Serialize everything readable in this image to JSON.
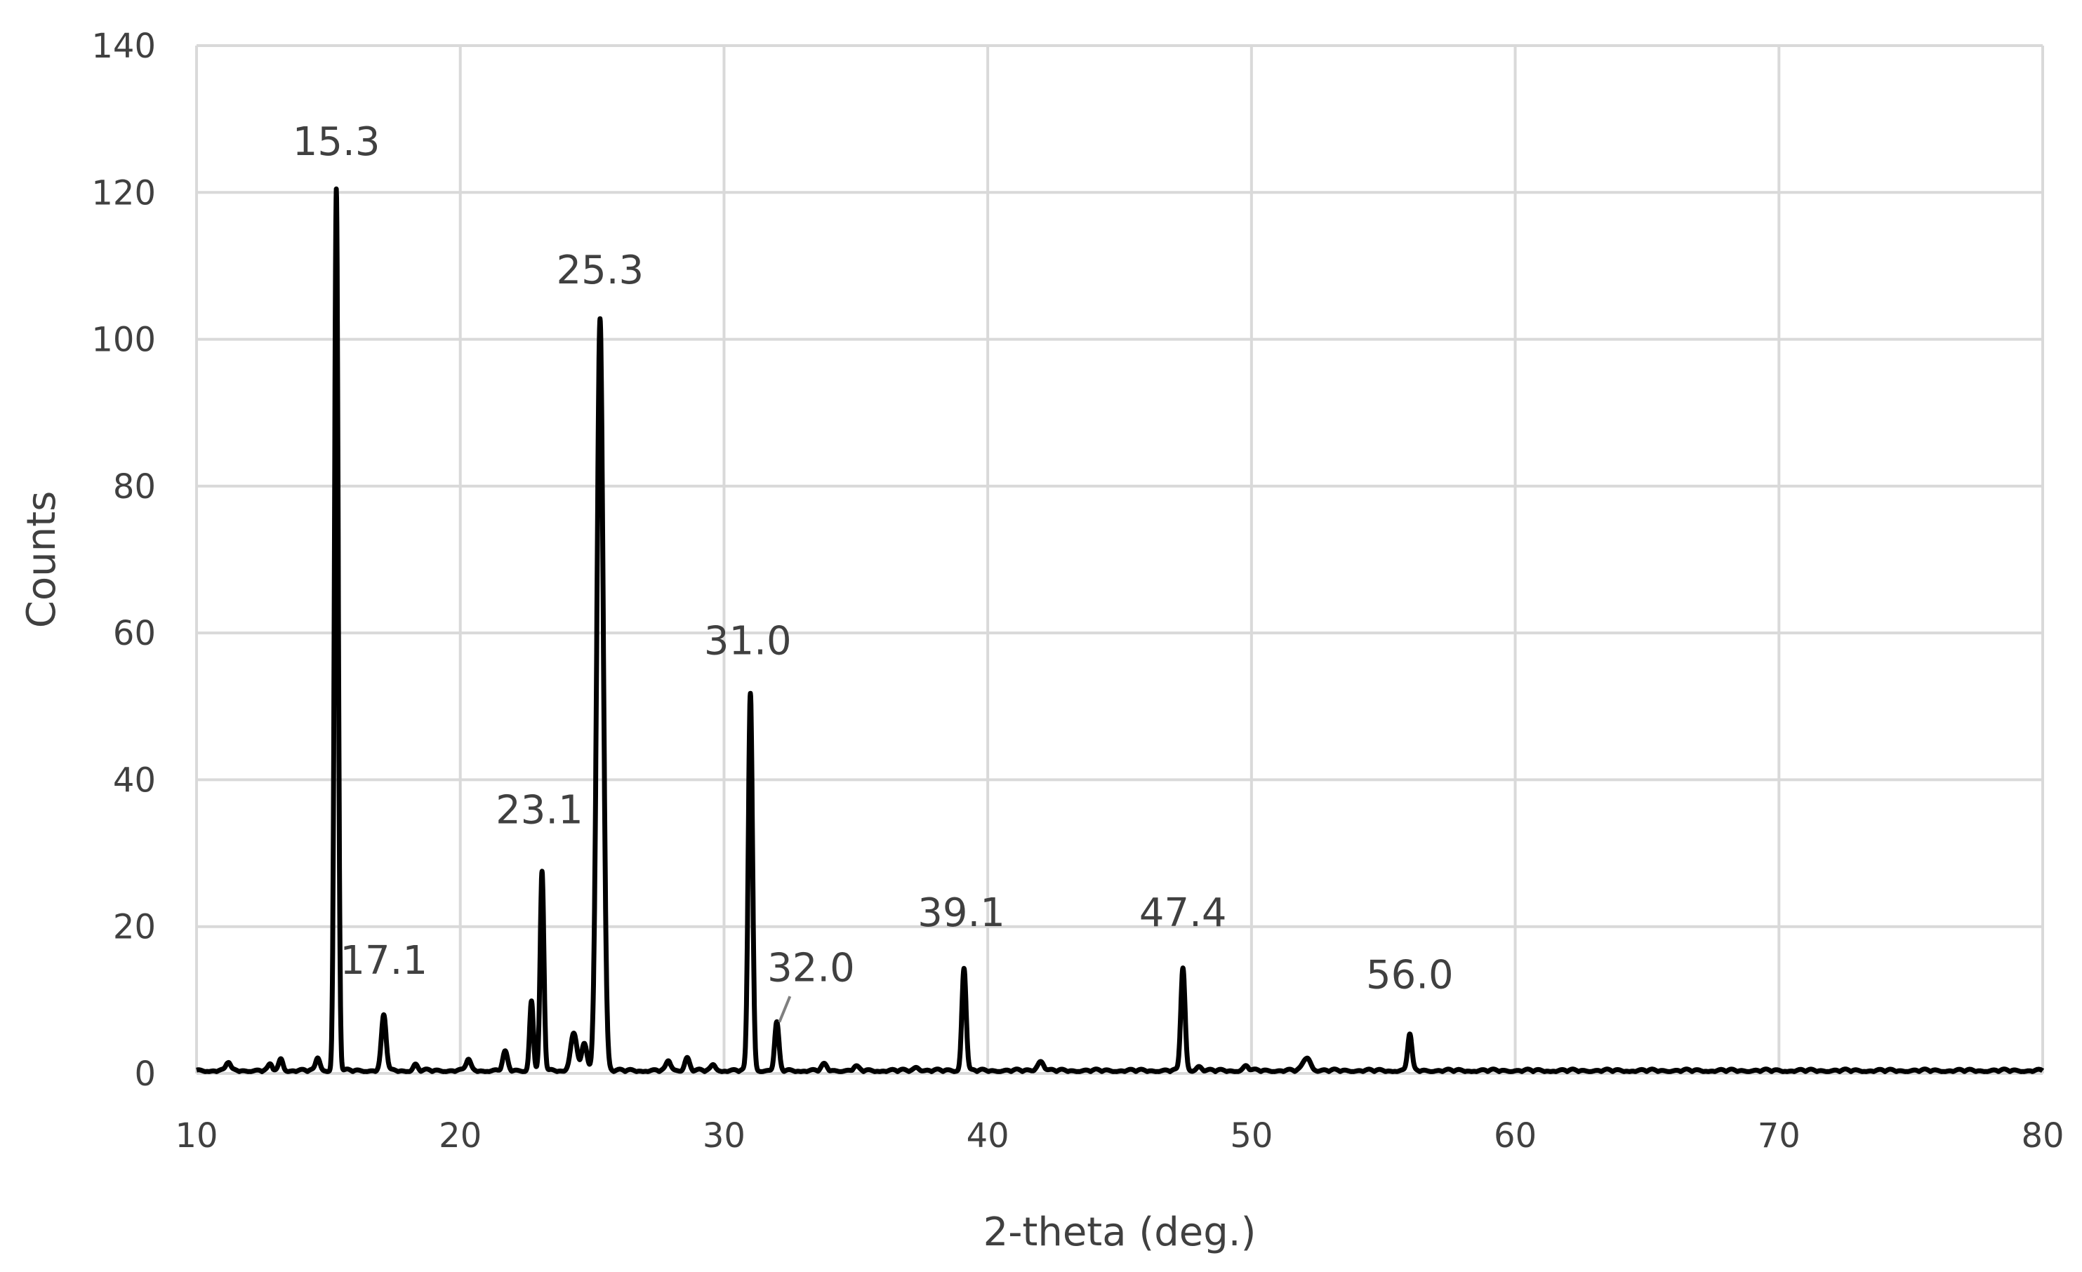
{
  "chart_data": {
    "type": "line",
    "title": "",
    "xlabel": "2-theta (deg.)",
    "ylabel": "Counts",
    "xlim": [
      10,
      80
    ],
    "ylim": [
      0,
      140
    ],
    "x_ticks": [
      "10",
      "20",
      "30",
      "40",
      "50",
      "60",
      "70",
      "80"
    ],
    "y_ticks": [
      "0",
      "20",
      "40",
      "60",
      "80",
      "100",
      "120",
      "140"
    ],
    "grid": true,
    "legend": "none",
    "series_color": "#000000",
    "grid_color": "#d9d9d9",
    "series": [
      {
        "peaks": [
          {
            "x": 11.2,
            "y": 1.2,
            "w": 0.08
          },
          {
            "x": 12.8,
            "y": 0.8,
            "w": 0.08
          },
          {
            "x": 13.2,
            "y": 1.6,
            "w": 0.08
          },
          {
            "x": 14.6,
            "y": 1.8,
            "w": 0.08
          },
          {
            "x": 15.3,
            "y": 120,
            "w": 0.07
          },
          {
            "x": 17.1,
            "y": 7.5,
            "w": 0.09
          },
          {
            "x": 18.3,
            "y": 0.8,
            "w": 0.08
          },
          {
            "x": 20.3,
            "y": 1.5,
            "w": 0.09
          },
          {
            "x": 21.7,
            "y": 2.5,
            "w": 0.09
          },
          {
            "x": 22.7,
            "y": 9.5,
            "w": 0.07
          },
          {
            "x": 23.1,
            "y": 27,
            "w": 0.07
          },
          {
            "x": 24.3,
            "y": 5,
            "w": 0.12
          },
          {
            "x": 24.7,
            "y": 3.5,
            "w": 0.1
          },
          {
            "x": 25.3,
            "y": 102.5,
            "w": 0.12
          },
          {
            "x": 27.9,
            "y": 1.3,
            "w": 0.09
          },
          {
            "x": 28.6,
            "y": 1.8,
            "w": 0.09
          },
          {
            "x": 29.6,
            "y": 0.8,
            "w": 0.09
          },
          {
            "x": 31.0,
            "y": 51.5,
            "w": 0.08
          },
          {
            "x": 32.0,
            "y": 6.5,
            "w": 0.08
          },
          {
            "x": 33.8,
            "y": 0.8,
            "w": 0.1
          },
          {
            "x": 35.0,
            "y": 0.5,
            "w": 0.1
          },
          {
            "x": 37.3,
            "y": 0.5,
            "w": 0.1
          },
          {
            "x": 39.1,
            "y": 14,
            "w": 0.08
          },
          {
            "x": 42.0,
            "y": 1.3,
            "w": 0.12
          },
          {
            "x": 47.4,
            "y": 14,
            "w": 0.08
          },
          {
            "x": 48.0,
            "y": 0.6,
            "w": 0.1
          },
          {
            "x": 49.8,
            "y": 0.6,
            "w": 0.1
          },
          {
            "x": 52.1,
            "y": 1.8,
            "w": 0.14
          },
          {
            "x": 56.0,
            "y": 5,
            "w": 0.08
          }
        ]
      }
    ],
    "annotations": [
      {
        "text": "15.3",
        "x": 15.3,
        "y": 127
      },
      {
        "text": "17.1",
        "x": 17.1,
        "y": 15.5
      },
      {
        "text": "23.1",
        "x": 23.0,
        "y": 36
      },
      {
        "text": "25.3",
        "x": 25.3,
        "y": 109.5
      },
      {
        "text": "31.0",
        "x": 30.9,
        "y": 59
      },
      {
        "text": "32.0",
        "x": 33.3,
        "y": 14.5,
        "leader_to": {
          "x": 32.1,
          "y": 7
        }
      },
      {
        "text": "39.1",
        "x": 39.0,
        "y": 22
      },
      {
        "text": "47.4",
        "x": 47.4,
        "y": 22
      },
      {
        "text": "56.0",
        "x": 56.0,
        "y": 13.5
      }
    ]
  }
}
